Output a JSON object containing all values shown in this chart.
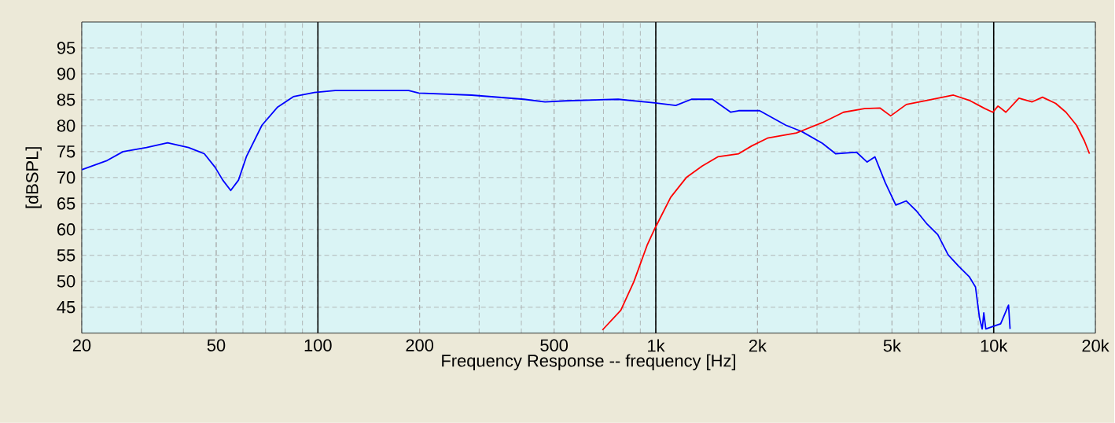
{
  "chart_data": {
    "type": "line",
    "xlabel": "Frequency Response -- frequency [Hz]",
    "ylabel": "[dBSPL]",
    "log": "x",
    "grid": true,
    "marker": "none",
    "line_style": "solid",
    "xlim": [
      20,
      20000
    ],
    "ylim": [
      40,
      100
    ],
    "xticks": [
      20,
      50,
      100,
      200,
      500,
      {
        "value": 1000,
        "label": "1k"
      },
      {
        "value": 2000,
        "label": "2k"
      },
      {
        "value": 5000,
        "label": "5k"
      },
      {
        "value": 10000,
        "label": "10k"
      },
      {
        "value": 20000,
        "label": "20k"
      }
    ],
    "yticks": [
      45,
      50,
      55,
      60,
      65,
      70,
      75,
      80,
      85,
      90,
      95
    ],
    "series": [
      {
        "color": "#0000ff",
        "x": [
          20,
          23.8,
          26.5,
          31.1,
          35.9,
          41.4,
          46.1,
          49.6,
          52.3,
          55.2,
          58.2,
          61.4,
          68.3,
          76,
          84.6,
          97.6,
          112.5,
          185.6,
          199,
          285,
          407,
          470,
          541,
          774,
          994,
          1146,
          1275,
          1471,
          1667,
          1759,
          2028,
          2425,
          2700,
          3112,
          3405,
          3926,
          4221,
          4452,
          4777,
          5133,
          5514,
          5919,
          6358,
          6832,
          7333,
          7878,
          8462,
          8834,
          9081,
          9248,
          9347,
          9478,
          10485,
          11064,
          11182
        ],
        "values": [
          71.5,
          73.3,
          75.0,
          75.8,
          76.7,
          75.8,
          74.6,
          72.0,
          69.5,
          67.5,
          69.5,
          74.0,
          80.1,
          83.6,
          85.6,
          86.4,
          86.8,
          86.8,
          86.3,
          85.9,
          85.1,
          84.6,
          84.8,
          85.1,
          84.4,
          83.9,
          85.1,
          85.1,
          82.6,
          82.9,
          82.9,
          80.1,
          78.9,
          76.6,
          74.6,
          74.9,
          73.0,
          74.0,
          69.0,
          64.7,
          65.5,
          63.5,
          61.0,
          59.0,
          55.1,
          52.9,
          50.9,
          48.9,
          42.9,
          40.8,
          43.9,
          40.8,
          41.8,
          45.4,
          40.8
        ]
      },
      {
        "color": "#ff0000",
        "x": [
          695,
          788,
          861,
          942,
          994,
          1107,
          1231,
          1371,
          1526,
          1759,
          1922,
          2140,
          2606,
          3112,
          3594,
          4144,
          4612,
          4956,
          5514,
          6358,
          7602,
          8462,
          9419,
          9940,
          10298,
          10866,
          11876,
          12997,
          13946,
          15254,
          16369,
          17581,
          18546,
          19215
        ],
        "values": [
          40.6,
          44.4,
          49.9,
          56.9,
          60.2,
          66.2,
          70.0,
          72.2,
          74.0,
          74.6,
          76.1,
          77.6,
          78.6,
          80.6,
          82.6,
          83.3,
          83.4,
          81.9,
          84.1,
          84.9,
          85.9,
          84.9,
          83.3,
          82.6,
          83.8,
          82.6,
          85.3,
          84.6,
          85.5,
          84.3,
          82.6,
          80.1,
          77.1,
          74.6
        ]
      }
    ]
  }
}
